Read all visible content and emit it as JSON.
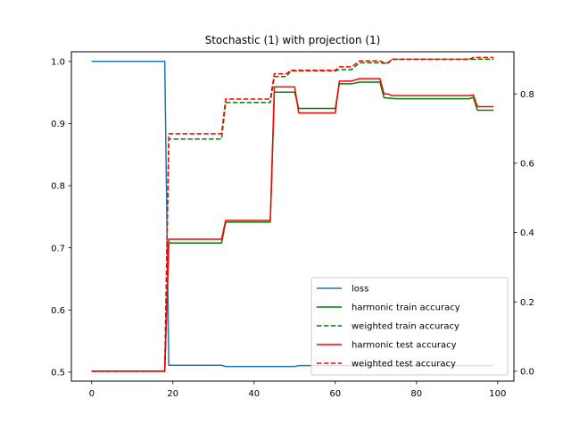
{
  "chart_data": {
    "type": "line",
    "title": "Stochastic (1) with projection (1)",
    "xlabel": "",
    "ylabel_left": "",
    "ylabel_right": "",
    "x_range": [
      -5,
      104
    ],
    "y_left_range": [
      0.4855,
      1.0155
    ],
    "y_right_range": [
      -0.0285,
      0.9215
    ],
    "x_ticks": [
      0,
      20,
      40,
      60,
      80,
      100
    ],
    "y_left_ticks": [
      0.5,
      0.6,
      0.7,
      0.8,
      0.9,
      1.0
    ],
    "y_left_tick_labels": [
      "0.5",
      "0.6",
      "0.7",
      "0.8",
      "0.9",
      "1.0"
    ],
    "y_right_ticks": [
      0.0,
      0.2,
      0.4,
      0.6,
      0.8
    ],
    "y_right_tick_labels": [
      "0.0",
      "0.2",
      "0.4",
      "0.6",
      "0.8"
    ],
    "grid": false,
    "legend_position": "lower-right",
    "series": [
      {
        "name": "loss",
        "axis": "left",
        "color": "#1f77b4",
        "dash": "solid",
        "points": [
          [
            0,
            1.0
          ],
          [
            18,
            1.0
          ],
          [
            19,
            0.511
          ],
          [
            32,
            0.511
          ],
          [
            33,
            0.509
          ],
          [
            50,
            0.509
          ],
          [
            51,
            0.5105
          ],
          [
            99,
            0.5105
          ]
        ]
      },
      {
        "name": "harmonic train accuracy",
        "axis": "right",
        "color": "#008000",
        "dash": "solid",
        "points": [
          [
            0,
            0.0
          ],
          [
            18,
            0.0
          ],
          [
            19,
            0.37
          ],
          [
            32,
            0.37
          ],
          [
            33,
            0.43
          ],
          [
            44,
            0.43
          ],
          [
            45,
            0.805
          ],
          [
            50,
            0.805
          ],
          [
            51,
            0.758
          ],
          [
            60,
            0.758
          ],
          [
            61,
            0.829
          ],
          [
            64,
            0.829
          ],
          [
            66,
            0.834
          ],
          [
            71,
            0.834
          ],
          [
            72,
            0.789
          ],
          [
            75,
            0.786
          ],
          [
            93,
            0.786
          ],
          [
            94,
            0.79
          ],
          [
            95,
            0.753
          ],
          [
            99,
            0.753
          ]
        ]
      },
      {
        "name": "weighted train accuracy",
        "axis": "right",
        "color": "#008000",
        "dash": "dashed",
        "points": [
          [
            0,
            0.0
          ],
          [
            18,
            0.0
          ],
          [
            19,
            0.67
          ],
          [
            32,
            0.67
          ],
          [
            33,
            0.775
          ],
          [
            44,
            0.775
          ],
          [
            45,
            0.85
          ],
          [
            48,
            0.85
          ],
          [
            49,
            0.866
          ],
          [
            60,
            0.866
          ],
          [
            61,
            0.87
          ],
          [
            64,
            0.87
          ],
          [
            66,
            0.89
          ],
          [
            71,
            0.89
          ],
          [
            72,
            0.888
          ],
          [
            73,
            0.888
          ],
          [
            74,
            0.9
          ],
          [
            99,
            0.9
          ]
        ]
      },
      {
        "name": "harmonic test accuracy",
        "axis": "right",
        "color": "#ff0000",
        "dash": "solid",
        "points": [
          [
            0,
            0.0
          ],
          [
            18,
            0.0
          ],
          [
            19,
            0.381
          ],
          [
            32,
            0.381
          ],
          [
            33,
            0.435
          ],
          [
            44,
            0.435
          ],
          [
            45,
            0.82
          ],
          [
            50,
            0.82
          ],
          [
            51,
            0.745
          ],
          [
            60,
            0.745
          ],
          [
            61,
            0.837
          ],
          [
            64,
            0.837
          ],
          [
            66,
            0.844
          ],
          [
            71,
            0.844
          ],
          [
            72,
            0.8
          ],
          [
            73,
            0.8
          ],
          [
            74,
            0.795
          ],
          [
            93,
            0.795
          ],
          [
            94,
            0.797
          ],
          [
            95,
            0.763
          ],
          [
            99,
            0.763
          ]
        ]
      },
      {
        "name": "weighted test accuracy",
        "axis": "right",
        "color": "#ff0000",
        "dash": "dashed",
        "points": [
          [
            0,
            0.0
          ],
          [
            18,
            0.0
          ],
          [
            19,
            0.685
          ],
          [
            32,
            0.685
          ],
          [
            33,
            0.785
          ],
          [
            44,
            0.785
          ],
          [
            45,
            0.858
          ],
          [
            48,
            0.858
          ],
          [
            49,
            0.868
          ],
          [
            60,
            0.868
          ],
          [
            61,
            0.878
          ],
          [
            64,
            0.878
          ],
          [
            66,
            0.895
          ],
          [
            71,
            0.895
          ],
          [
            72,
            0.89
          ],
          [
            73,
            0.89
          ],
          [
            74,
            0.9
          ],
          [
            93,
            0.9
          ],
          [
            94,
            0.905
          ],
          [
            99,
            0.905
          ]
        ]
      }
    ]
  }
}
